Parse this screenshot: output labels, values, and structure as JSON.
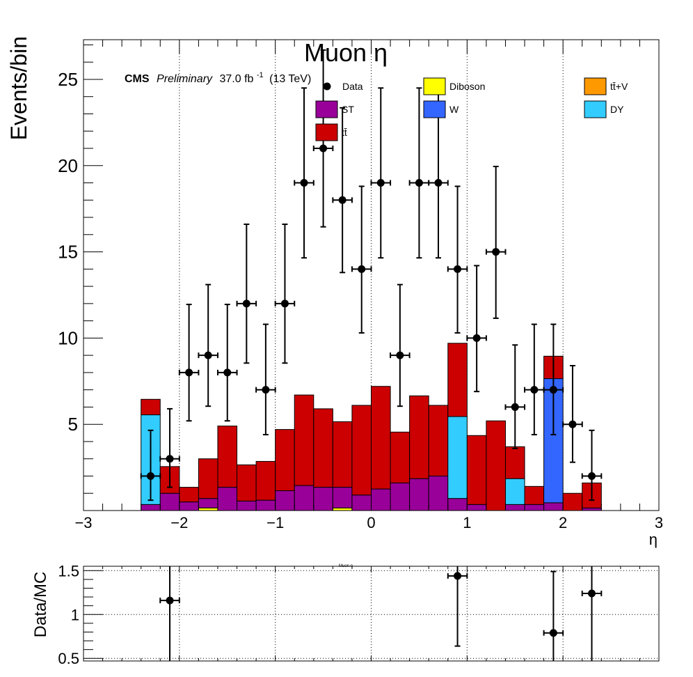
{
  "main_chart": {
    "title": "Muon η",
    "experiment": "CMS",
    "label_preliminary": "Preliminary",
    "lumi_text": "37.0 fb",
    "lumi_superscript": "-1",
    "energy_text": "(13 TeV)",
    "xlabel": "η",
    "ylabel": "Events/bin"
  },
  "ratio_chart": {
    "title": "Muon η",
    "ylabel": "Data/MC"
  },
  "chart_data": [
    {
      "type": "bar",
      "stacked": true,
      "title": "Muon η",
      "xlabel": "η",
      "ylabel": "Events/bin",
      "xlim": [
        -3,
        3
      ],
      "ylim": [
        0,
        27.3
      ],
      "x_ticks": [
        -3,
        -2,
        -1,
        0,
        1,
        2,
        3
      ],
      "x_tick_labels": [
        "−3",
        "−2",
        "−1",
        "0",
        "1",
        "2",
        "3"
      ],
      "y_ticks": [
        5,
        10,
        15,
        20,
        25
      ],
      "y_tick_labels": [
        "5",
        "10",
        "15",
        "20",
        "25"
      ],
      "grid": "vertical-dotted",
      "bin_edges": [
        -2.4,
        -2.2,
        -2.0,
        -1.8,
        -1.6,
        -1.4,
        -1.2,
        -1.0,
        -0.8,
        -0.6,
        -0.4,
        -0.2,
        0.0,
        0.2,
        0.4,
        0.6,
        0.8,
        1.0,
        1.2,
        1.4,
        1.6,
        1.8,
        2.0,
        2.2,
        2.4
      ],
      "legend": [
        {
          "label": "Data",
          "key": "data",
          "color": "#000000"
        },
        {
          "label": "Diboson",
          "key": "diboson",
          "color": "#ffff00"
        },
        {
          "label": "tt̄+V",
          "key": "ttv",
          "color": "#ff9900"
        },
        {
          "label": "ST",
          "key": "st",
          "color": "#990099"
        },
        {
          "label": "W",
          "key": "w",
          "color": "#3366ff"
        },
        {
          "label": "DY",
          "key": "dy",
          "color": "#33ccff"
        },
        {
          "label": "tt̄",
          "key": "tt",
          "color": "#cc0000"
        }
      ],
      "stack_order": [
        "diboson",
        "st",
        "ttv",
        "w",
        "dy",
        "tt"
      ],
      "series": [
        {
          "name": "Diboson",
          "key": "diboson",
          "values": [
            0,
            0,
            0,
            0.15,
            0,
            0,
            0,
            0,
            0,
            0,
            0.15,
            0,
            0,
            0,
            0,
            0,
            0,
            0,
            0,
            0,
            0,
            0,
            0,
            0
          ]
        },
        {
          "name": "ST",
          "key": "st",
          "values": [
            0.35,
            1.0,
            0.5,
            0.55,
            1.35,
            0.55,
            0.6,
            1.15,
            1.45,
            1.35,
            1.2,
            0.9,
            1.25,
            1.6,
            1.85,
            2.0,
            0.7,
            0.35,
            0,
            0.35,
            0.35,
            0.45,
            0,
            0.15
          ]
        },
        {
          "name": "tt̄+V",
          "key": "ttv",
          "values": [
            0,
            0,
            0,
            0,
            0,
            0,
            0,
            0,
            0,
            0,
            0,
            0,
            0,
            0,
            0,
            0,
            0,
            0,
            0,
            0,
            0,
            0,
            0,
            0
          ]
        },
        {
          "name": "W",
          "key": "w",
          "values": [
            0,
            0,
            0,
            0,
            0,
            0,
            0,
            0,
            0,
            0,
            0,
            0,
            0,
            0,
            0,
            0,
            0,
            0,
            0,
            0,
            0,
            7.2,
            0,
            0
          ]
        },
        {
          "name": "DY",
          "key": "dy",
          "values": [
            5.2,
            0,
            0,
            0,
            0,
            0,
            0,
            0,
            0,
            0,
            0,
            0,
            0,
            0,
            0,
            0,
            4.75,
            0,
            0,
            1.5,
            0,
            0,
            0,
            0
          ]
        },
        {
          "name": "tt̄",
          "key": "tt",
          "values": [
            0.9,
            1.55,
            0.85,
            2.3,
            3.55,
            2.1,
            2.25,
            3.55,
            5.25,
            4.55,
            3.8,
            5.2,
            5.95,
            2.95,
            4.8,
            4.1,
            4.25,
            4.0,
            5.2,
            1.85,
            1.05,
            1.3,
            1.0,
            1.45
          ]
        }
      ],
      "data_points": {
        "x": [
          -2.3,
          -2.1,
          -1.9,
          -1.7,
          -1.5,
          -1.3,
          -1.1,
          -0.9,
          -0.7,
          -0.5,
          -0.3,
          -0.1,
          0.1,
          0.3,
          0.5,
          0.7,
          0.9,
          1.1,
          1.3,
          1.5,
          1.7,
          1.9,
          2.1,
          2.3
        ],
        "y": [
          2,
          3,
          8,
          9,
          8,
          12,
          7,
          12,
          19,
          21,
          18,
          14,
          19,
          9,
          19,
          19,
          14,
          10,
          15,
          6,
          7,
          7,
          5,
          2
        ],
        "err_low": [
          1.4,
          1.65,
          2.8,
          2.95,
          2.8,
          3.45,
          2.6,
          3.45,
          4.35,
          4.55,
          4.2,
          3.7,
          4.35,
          2.95,
          4.35,
          4.35,
          3.7,
          3.1,
          3.85,
          2.4,
          2.6,
          2.6,
          2.2,
          1.4
        ],
        "err_high": [
          2.65,
          2.9,
          3.95,
          4.1,
          3.95,
          4.6,
          3.8,
          4.6,
          5.5,
          5.7,
          5.35,
          4.8,
          5.5,
          4.1,
          5.5,
          5.5,
          4.8,
          4.2,
          4.95,
          3.6,
          3.8,
          3.8,
          3.4,
          2.65
        ],
        "x_err": 0.1
      }
    },
    {
      "type": "scatter",
      "title": "Muon η",
      "ylabel": "Data/MC",
      "xlim": [
        -3,
        3
      ],
      "ylim": [
        0.47,
        1.55
      ],
      "y_ticks": [
        0.5,
        1,
        1.5
      ],
      "y_tick_labels": [
        "0.5",
        "1",
        "1.5"
      ],
      "grid": "dotted",
      "points": {
        "x": [
          -2.1,
          0.9,
          1.9,
          2.3
        ],
        "y": [
          1.16,
          1.44,
          0.79,
          1.24
        ],
        "err_low": [
          1.0,
          0.8,
          0.79,
          0.8
        ],
        "err_high": [
          0.5,
          0.2,
          0.7,
          0.4
        ],
        "x_err": 0.1
      }
    }
  ]
}
